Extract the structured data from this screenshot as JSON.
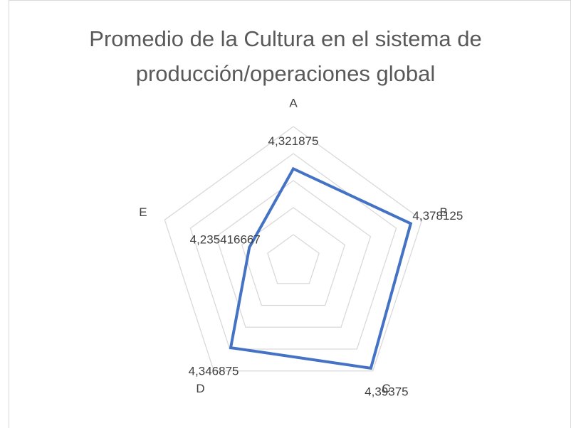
{
  "chart_data": {
    "type": "radar",
    "title": "Promedio de la Cultura en el sistema de producción/operaciones global",
    "categories": [
      "A",
      "B",
      "C",
      "D",
      "E"
    ],
    "series": [
      {
        "name": "Promedio",
        "color": "#4472c4",
        "values": [
          4.321875,
          4.378125,
          4.39375,
          4.346875,
          4.235416667
        ],
        "value_labels": [
          "4,321875",
          "4,378125",
          "4,39375",
          "4,346875",
          "4,235416667"
        ]
      }
    ],
    "ylim": [
      4.15,
      4.4
    ],
    "yticks": [
      4.15,
      4.2,
      4.25,
      4.3,
      4.35,
      4.4
    ],
    "grid": true
  }
}
